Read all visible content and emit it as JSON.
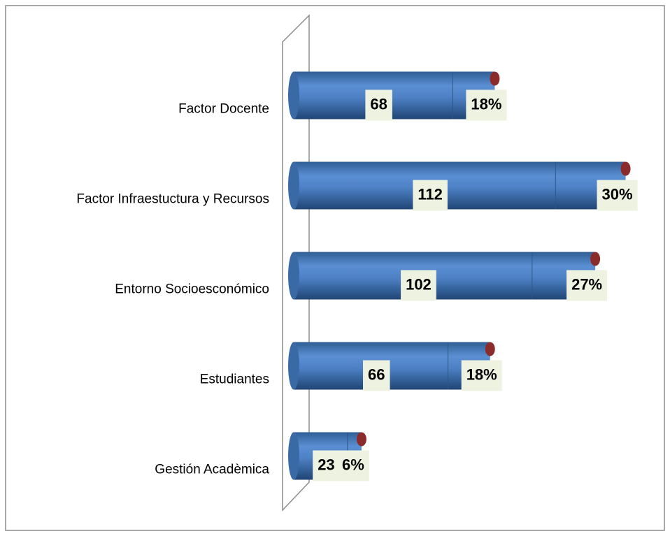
{
  "chart_data": {
    "type": "bar",
    "orientation": "horizontal",
    "stacked": true,
    "categories": [
      "Factor Docente",
      "Factor Infraestuctura y Recursos",
      "Entorno Socioesconómico",
      "Estudiantes",
      "Gestión Acadèmica"
    ],
    "series": [
      {
        "color": "#4f81bd",
        "values": [
          68,
          112,
          102,
          66,
          23
        ]
      },
      {
        "color": "#4f81bd",
        "values": [
          18,
          30,
          27,
          18,
          6
        ],
        "value_labels": [
          "18%",
          "30%",
          "27%",
          "18%",
          "6%"
        ]
      }
    ],
    "xlim": [
      0,
      155
    ]
  }
}
